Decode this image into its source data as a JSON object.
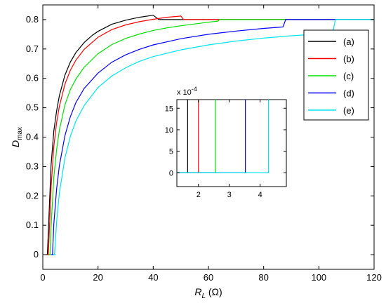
{
  "chart_data": [
    {
      "type": "line",
      "xlabel": {
        "main": "R",
        "sub": "L",
        "unit": " (Ω)"
      },
      "ylabel": {
        "main": "D",
        "sub": "max"
      },
      "xlim": [
        0,
        120
      ],
      "ylim": [
        -0.05,
        0.85
      ],
      "xticks": [
        "0",
        "20",
        "40",
        "60",
        "80",
        "100",
        "120"
      ],
      "yticks": [
        "0",
        "0.1",
        "0.2",
        "0.3",
        "0.4",
        "0.5",
        "0.6",
        "0.7",
        "0.8"
      ],
      "grid": false,
      "legend_position": "top-right",
      "series": [
        {
          "name": "(a)",
          "color": "#000000",
          "x": [
            1.65,
            3,
            4,
            5,
            6,
            8,
            10,
            12,
            15,
            18,
            20,
            25,
            30,
            35,
            40,
            42,
            120
          ],
          "y": [
            0,
            0.306,
            0.421,
            0.49,
            0.541,
            0.611,
            0.656,
            0.688,
            0.722,
            0.747,
            0.76,
            0.784,
            0.798,
            0.808,
            0.815,
            0.8,
            0.8
          ]
        },
        {
          "name": "(b)",
          "color": "#ff0000",
          "x": [
            2.0,
            3,
            4,
            5,
            6,
            8,
            10,
            12,
            15,
            20,
            25,
            30,
            35,
            40,
            45,
            50,
            51,
            120
          ],
          "y": [
            0,
            0.231,
            0.369,
            0.45,
            0.505,
            0.58,
            0.628,
            0.662,
            0.699,
            0.74,
            0.766,
            0.782,
            0.793,
            0.801,
            0.808,
            0.812,
            0.8,
            0.8
          ]
        },
        {
          "name": "(c)",
          "color": "#00e000",
          "x": [
            2.6,
            3,
            4,
            5,
            6,
            8,
            10,
            12,
            15,
            20,
            25,
            30,
            35,
            40,
            45,
            50,
            55,
            60,
            63.5,
            64,
            120
          ],
          "y": [
            0,
            0.098,
            0.264,
            0.358,
            0.424,
            0.51,
            0.562,
            0.598,
            0.638,
            0.684,
            0.715,
            0.736,
            0.751,
            0.763,
            0.772,
            0.779,
            0.785,
            0.791,
            0.795,
            0.8,
            0.8
          ]
        },
        {
          "name": "(d)",
          "color": "#0000ff",
          "x": [
            3.5,
            4,
            5,
            6,
            8,
            10,
            12,
            15,
            20,
            25,
            30,
            35,
            40,
            50,
            60,
            70,
            80,
            87,
            88,
            120
          ],
          "y": [
            0,
            0.104,
            0.224,
            0.303,
            0.405,
            0.47,
            0.518,
            0.566,
            0.618,
            0.655,
            0.68,
            0.699,
            0.714,
            0.735,
            0.75,
            0.761,
            0.77,
            0.775,
            0.8,
            0.8
          ]
        },
        {
          "name": "(e)",
          "color": "#00e5ee",
          "x": [
            4.25,
            5,
            6,
            8,
            10,
            12,
            15,
            20,
            25,
            30,
            35,
            40,
            50,
            60,
            70,
            80,
            90,
            100,
            105,
            106,
            120
          ],
          "y": [
            0,
            0.112,
            0.21,
            0.329,
            0.403,
            0.455,
            0.508,
            0.569,
            0.608,
            0.636,
            0.658,
            0.674,
            0.697,
            0.714,
            0.727,
            0.737,
            0.745,
            0.751,
            0.755,
            0.8,
            0.8
          ]
        }
      ]
    },
    {
      "type": "line",
      "role": "inset",
      "xlim": [
        1.3,
        4.85
      ],
      "ylim": [
        -3.2,
        17
      ],
      "xticks": [
        "2",
        "3",
        "4"
      ],
      "yticks": [
        "0",
        "5",
        "10",
        "15"
      ],
      "yscale_label": {
        "base": "x 10",
        "exp": "-4"
      },
      "series": [
        {
          "name": "(a)",
          "color": "#000000",
          "x": [
            1.3,
            1.65,
            1.65
          ],
          "y": [
            0,
            0,
            17
          ]
        },
        {
          "name": "(b)",
          "color": "#ff0000",
          "x": [
            1.3,
            2.0,
            2.0
          ],
          "y": [
            0,
            0,
            17
          ]
        },
        {
          "name": "(c)",
          "color": "#00e000",
          "x": [
            1.3,
            2.55,
            2.55
          ],
          "y": [
            0,
            0,
            17
          ]
        },
        {
          "name": "(d)",
          "color": "#0000ff",
          "x": [
            1.3,
            3.52,
            3.52
          ],
          "y": [
            0,
            0,
            17
          ]
        },
        {
          "name": "(e)",
          "color": "#00e5ee",
          "x": [
            1.3,
            4.27,
            4.27
          ],
          "y": [
            0,
            0,
            17
          ]
        }
      ]
    }
  ]
}
